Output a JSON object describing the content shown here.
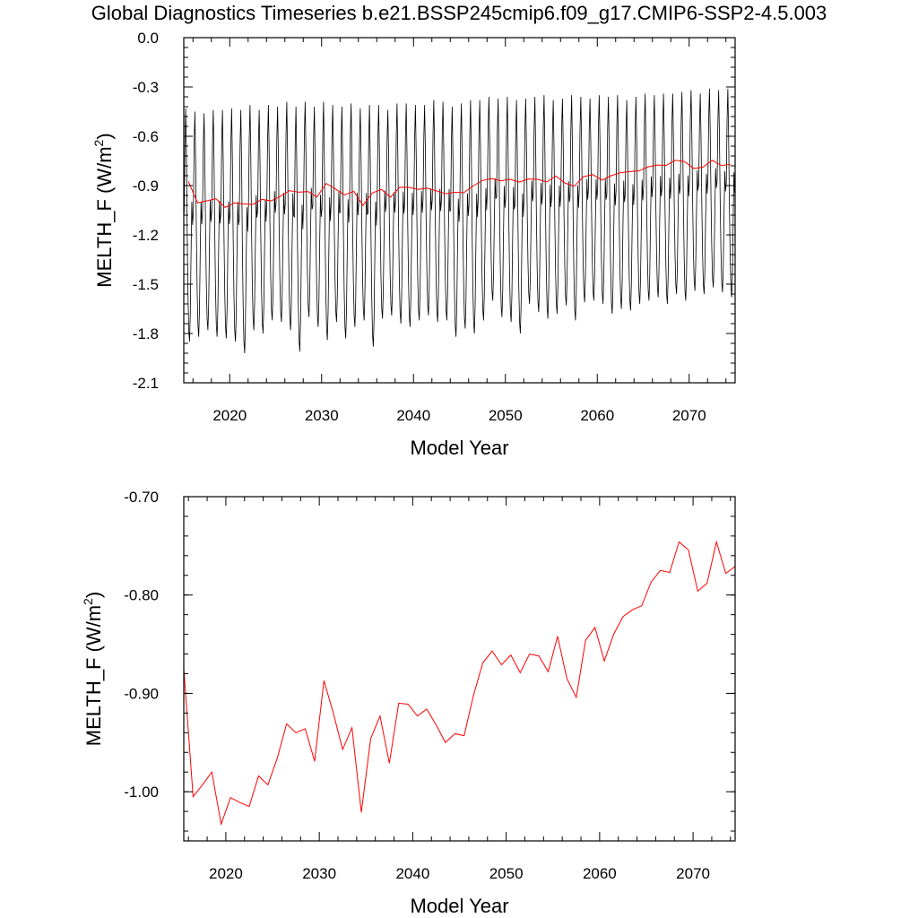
{
  "title": "Global Diagnostics Timeseries b.e21.BSSP245cmip6.f09_g17.CMIP6-SSP2-4.5.003",
  "colors": {
    "monthly": "#000000",
    "annual": "#ff0000",
    "axes": "#000000"
  },
  "chart_data": [
    {
      "type": "line",
      "xlabel": "Model Year",
      "ylabel_main": "MELTH_F (W/m",
      "ylabel_sup": "2",
      "ylabel_tail": ")",
      "xlim": [
        2015,
        2075
      ],
      "ylim": [
        -2.1,
        0.0
      ],
      "xticks": [
        2020,
        2030,
        2040,
        2050,
        2060,
        2070
      ],
      "xtick_labels": [
        "2020",
        "2030",
        "2040",
        "2050",
        "2060",
        "2070"
      ],
      "yticks": [
        0.0,
        -0.3,
        -0.6,
        -0.9,
        -1.2,
        -1.5,
        -1.8,
        -2.1
      ],
      "ytick_labels": [
        "0.0",
        "-0.3",
        "-0.6",
        "-0.9",
        "-1.2",
        "-1.5",
        "-1.8",
        "-2.1"
      ],
      "grid": false,
      "series": [
        {
          "style": "monthly seasonal cycle",
          "color": "#000000",
          "start_year": 2015,
          "annual_min": [
            -1.85,
            -1.82,
            -1.78,
            -1.82,
            -1.83,
            -1.85,
            -1.92,
            -1.78,
            -1.8,
            -1.72,
            -1.73,
            -1.78,
            -1.91,
            -1.7,
            -1.76,
            -1.84,
            -1.73,
            -1.83,
            -1.76,
            -1.72,
            -1.88,
            -1.71,
            -1.69,
            -1.74,
            -1.76,
            -1.72,
            -1.69,
            -1.73,
            -1.72,
            -1.82,
            -1.77,
            -1.8,
            -1.72,
            -1.6,
            -1.7,
            -1.73,
            -1.8,
            -1.62,
            -1.67,
            -1.71,
            -1.68,
            -1.63,
            -1.72,
            -1.61,
            -1.6,
            -1.62,
            -1.68,
            -1.65,
            -1.66,
            -1.62,
            -1.6,
            -1.58,
            -1.62,
            -1.56,
            -1.6,
            -1.54,
            -1.56,
            -1.52,
            -1.55,
            -1.58
          ],
          "annual_max": [
            -0.43,
            -0.45,
            -0.46,
            -0.44,
            -0.44,
            -0.43,
            -0.44,
            -0.41,
            -0.44,
            -0.41,
            -0.42,
            -0.39,
            -0.42,
            -0.39,
            -0.42,
            -0.39,
            -0.41,
            -0.42,
            -0.4,
            -0.43,
            -0.41,
            -0.41,
            -0.44,
            -0.4,
            -0.4,
            -0.41,
            -0.41,
            -0.38,
            -0.39,
            -0.42,
            -0.4,
            -0.38,
            -0.38,
            -0.36,
            -0.37,
            -0.36,
            -0.38,
            -0.37,
            -0.36,
            -0.35,
            -0.38,
            -0.37,
            -0.35,
            -0.36,
            -0.37,
            -0.35,
            -0.36,
            -0.35,
            -0.38,
            -0.36,
            -0.34,
            -0.35,
            -0.34,
            -0.34,
            -0.33,
            -0.32,
            -0.34,
            -0.31,
            -0.32,
            -0.31
          ]
        },
        {
          "style": "annual mean",
          "color": "#ff0000",
          "x": [
            2015.5,
            2016.5,
            2017.5,
            2018.5,
            2019.5,
            2020.5,
            2021.5,
            2022.5,
            2023.5,
            2024.5,
            2025.5,
            2026.5,
            2027.5,
            2028.5,
            2029.5,
            2030.5,
            2031.5,
            2032.5,
            2033.5,
            2034.5,
            2035.5,
            2036.5,
            2037.5,
            2038.5,
            2039.5,
            2040.5,
            2041.5,
            2042.5,
            2043.5,
            2044.5,
            2045.5,
            2046.5,
            2047.5,
            2048.5,
            2049.5,
            2050.5,
            2051.5,
            2052.5,
            2053.5,
            2054.5,
            2055.5,
            2056.5,
            2057.5,
            2058.5,
            2059.5,
            2060.5,
            2061.5,
            2062.5,
            2063.5,
            2064.5,
            2065.5,
            2066.5,
            2067.5,
            2068.5,
            2069.5,
            2070.5,
            2071.5,
            2072.5,
            2073.5,
            2074.5
          ],
          "y": [
            -0.875,
            -1.005,
            -0.993,
            -0.98,
            -1.033,
            -1.006,
            -1.011,
            -1.015,
            -0.984,
            -0.993,
            -0.966,
            -0.931,
            -0.94,
            -0.936,
            -0.969,
            -0.887,
            -0.92,
            -0.957,
            -0.935,
            -1.021,
            -0.946,
            -0.923,
            -0.971,
            -0.91,
            -0.911,
            -0.923,
            -0.916,
            -0.932,
            -0.95,
            -0.941,
            -0.943,
            -0.902,
            -0.869,
            -0.857,
            -0.871,
            -0.861,
            -0.879,
            -0.86,
            -0.862,
            -0.878,
            -0.842,
            -0.885,
            -0.904,
            -0.846,
            -0.833,
            -0.867,
            -0.84,
            -0.822,
            -0.815,
            -0.811,
            -0.787,
            -0.775,
            -0.777,
            -0.746,
            -0.754,
            -0.796,
            -0.788,
            -0.746,
            -0.778,
            -0.771
          ]
        }
      ]
    },
    {
      "type": "line",
      "xlabel": "Model Year",
      "ylabel_main": "MELTH_F (W/m",
      "ylabel_sup": "2",
      "ylabel_tail": ")",
      "xlim": [
        2015.5,
        2074.5
      ],
      "ylim": [
        -1.05,
        -0.7
      ],
      "xticks": [
        2020,
        2030,
        2040,
        2050,
        2060,
        2070
      ],
      "xtick_labels": [
        "2020",
        "2030",
        "2040",
        "2050",
        "2060",
        "2070"
      ],
      "yticks": [
        -0.7,
        -0.8,
        -0.9,
        -1.0
      ],
      "ytick_labels": [
        "-0.70",
        "-0.80",
        "-0.90",
        "-1.00"
      ],
      "grid": false,
      "series": [
        {
          "style": "annual mean",
          "color": "#ff0000",
          "x": [
            2015.5,
            2016.5,
            2017.5,
            2018.5,
            2019.5,
            2020.5,
            2021.5,
            2022.5,
            2023.5,
            2024.5,
            2025.5,
            2026.5,
            2027.5,
            2028.5,
            2029.5,
            2030.5,
            2031.5,
            2032.5,
            2033.5,
            2034.5,
            2035.5,
            2036.5,
            2037.5,
            2038.5,
            2039.5,
            2040.5,
            2041.5,
            2042.5,
            2043.5,
            2044.5,
            2045.5,
            2046.5,
            2047.5,
            2048.5,
            2049.5,
            2050.5,
            2051.5,
            2052.5,
            2053.5,
            2054.5,
            2055.5,
            2056.5,
            2057.5,
            2058.5,
            2059.5,
            2060.5,
            2061.5,
            2062.5,
            2063.5,
            2064.5,
            2065.5,
            2066.5,
            2067.5,
            2068.5,
            2069.5,
            2070.5,
            2071.5,
            2072.5,
            2073.5,
            2074.5
          ],
          "y": [
            -0.875,
            -1.005,
            -0.993,
            -0.98,
            -1.033,
            -1.006,
            -1.011,
            -1.015,
            -0.984,
            -0.993,
            -0.966,
            -0.931,
            -0.94,
            -0.936,
            -0.969,
            -0.887,
            -0.92,
            -0.957,
            -0.935,
            -1.021,
            -0.946,
            -0.923,
            -0.971,
            -0.91,
            -0.911,
            -0.923,
            -0.916,
            -0.932,
            -0.95,
            -0.941,
            -0.943,
            -0.902,
            -0.869,
            -0.857,
            -0.871,
            -0.861,
            -0.879,
            -0.86,
            -0.862,
            -0.878,
            -0.842,
            -0.885,
            -0.904,
            -0.846,
            -0.833,
            -0.867,
            -0.84,
            -0.822,
            -0.815,
            -0.811,
            -0.787,
            -0.775,
            -0.777,
            -0.746,
            -0.754,
            -0.796,
            -0.788,
            -0.746,
            -0.778,
            -0.771
          ]
        }
      ]
    }
  ]
}
